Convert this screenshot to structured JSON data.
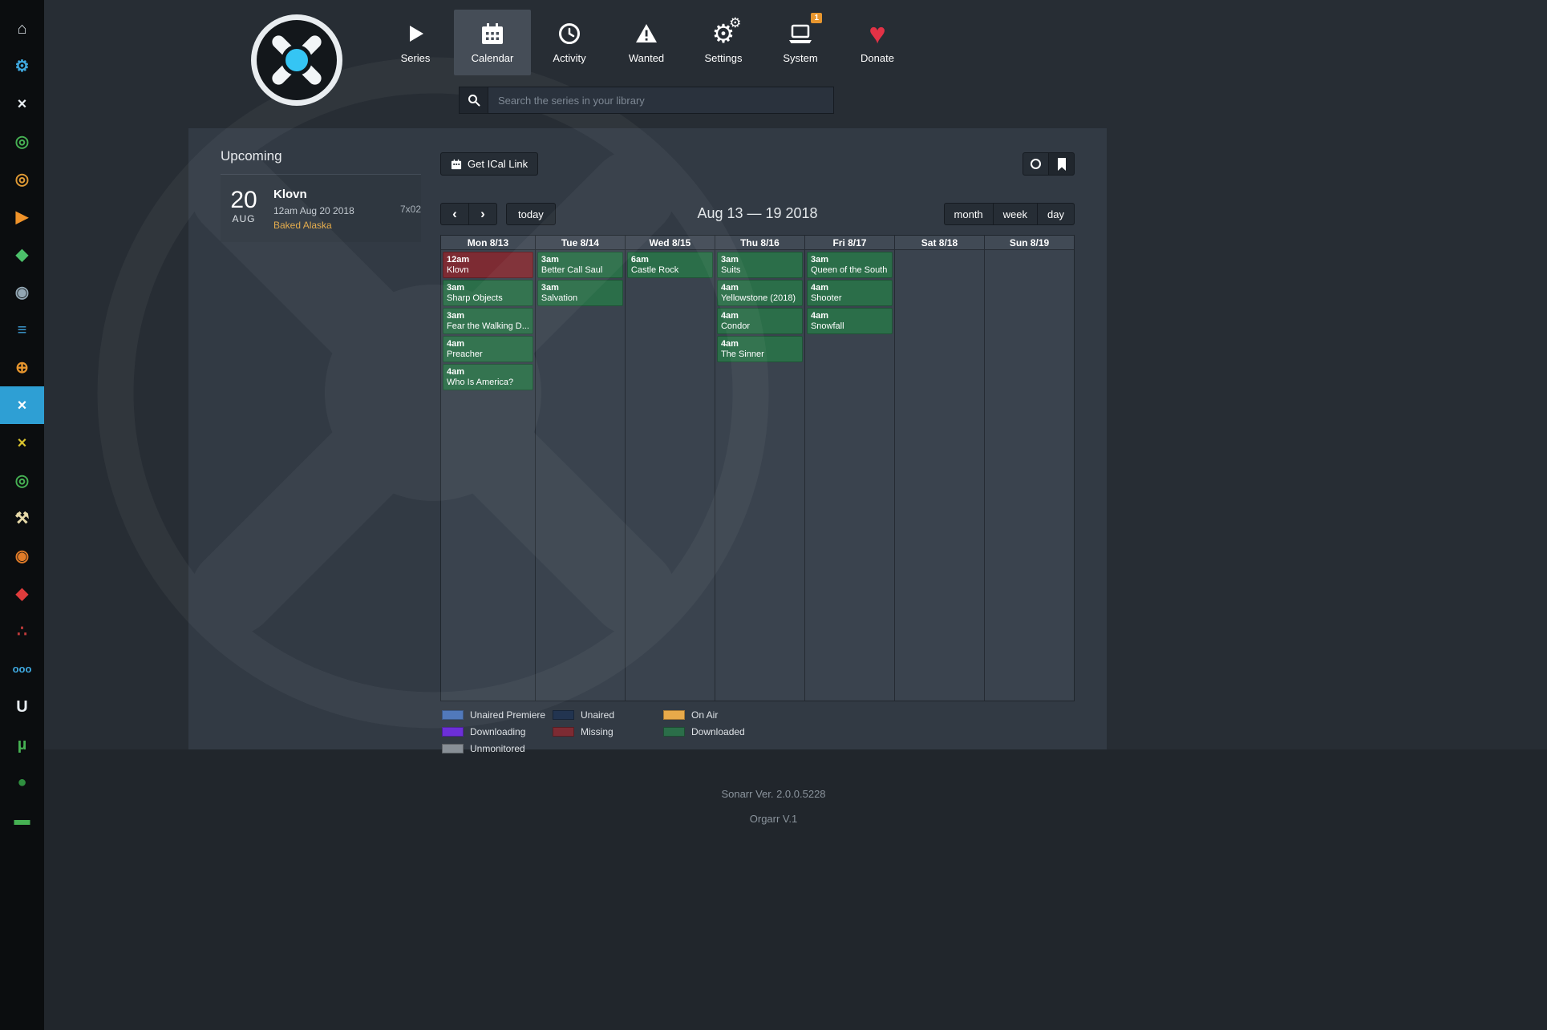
{
  "colors": {
    "accent": "#35c5f4",
    "sidebar_active": "#2e9fd4",
    "badge": "#e8962e",
    "donate": "#e23246",
    "episode": "#e3a946"
  },
  "sidebar": {
    "items": [
      {
        "name": "home",
        "glyph": "⌂",
        "color": "#d7dde2"
      },
      {
        "name": "settings-gear",
        "glyph": "⚙",
        "color": "#3fa9e0"
      },
      {
        "name": "sonarr-white",
        "glyph": "×",
        "color": "#e8edf1"
      },
      {
        "name": "green-ring",
        "glyph": "◎",
        "color": "#46b153"
      },
      {
        "name": "orange-ring",
        "glyph": "◎",
        "color": "#e09a35"
      },
      {
        "name": "orange-play",
        "glyph": "▶",
        "color": "#f0932a"
      },
      {
        "name": "green-diamond",
        "glyph": "◆",
        "color": "#4cc06a"
      },
      {
        "name": "gray-circle",
        "glyph": "◉",
        "color": "#93a7b4"
      },
      {
        "name": "blue-bars",
        "glyph": "≡",
        "color": "#3e9fd8"
      },
      {
        "name": "orange-search",
        "glyph": "⊕",
        "color": "#e8962e"
      },
      {
        "name": "sonarr-active",
        "glyph": "×",
        "color": "#ffffff",
        "active": true
      },
      {
        "name": "yellow-x",
        "glyph": "×",
        "color": "#d8c22e"
      },
      {
        "name": "green-ring-2",
        "glyph": "◎",
        "color": "#46b153"
      },
      {
        "name": "tools",
        "glyph": "⚒",
        "color": "#e7d9a8"
      },
      {
        "name": "orange-swirl",
        "glyph": "◉",
        "color": "#e07b28"
      },
      {
        "name": "red-shield",
        "glyph": "◆",
        "color": "#e03c3c"
      },
      {
        "name": "red-cluster",
        "glyph": "∴",
        "color": "#c03a3a"
      },
      {
        "name": "blue-ooo",
        "glyph": "ooo",
        "color": "#3fa9e0"
      },
      {
        "name": "letter-u",
        "glyph": "U",
        "color": "#e8edf1"
      },
      {
        "name": "utorrent",
        "glyph": "µ",
        "color": "#46b153"
      },
      {
        "name": "dark-green-circle",
        "glyph": "●",
        "color": "#2f8f3f"
      },
      {
        "name": "green-block",
        "glyph": "▬",
        "color": "#46b153"
      }
    ]
  },
  "nav": {
    "series": "Series",
    "calendar": "Calendar",
    "activity": "Activity",
    "wanted": "Wanted",
    "settings": "Settings",
    "system": "System",
    "system_badge": "1",
    "donate": "Donate"
  },
  "search": {
    "placeholder": "Search the series in your library"
  },
  "upcoming": {
    "title": "Upcoming",
    "events": [
      {
        "day": "20",
        "month": "AUG",
        "title": "Klovn",
        "datetime": "12am Aug 20 2018",
        "episode": "Baked Alaska",
        "code": "7x02"
      }
    ]
  },
  "calendar": {
    "ical_button": "Get ICal Link",
    "prev_icon": "‹",
    "next_icon": "›",
    "today_button": "today",
    "range_title": "Aug 13 — 19 2018",
    "views": [
      "month",
      "week",
      "day"
    ],
    "status_colors": {
      "downloaded": "#2b6e49",
      "missing": "#7d2b33"
    },
    "days": [
      {
        "label": "Mon 8/13",
        "events": [
          {
            "time": "12am",
            "title": "Klovn",
            "status": "missing"
          },
          {
            "time": "3am",
            "title": "Sharp Objects",
            "status": "downloaded"
          },
          {
            "time": "3am",
            "title": "Fear the Walking D...",
            "status": "downloaded"
          },
          {
            "time": "4am",
            "title": "Preacher",
            "status": "downloaded"
          },
          {
            "time": "4am",
            "title": "Who Is America?",
            "status": "downloaded"
          }
        ]
      },
      {
        "label": "Tue 8/14",
        "events": [
          {
            "time": "3am",
            "title": "Better Call Saul",
            "status": "downloaded"
          },
          {
            "time": "3am",
            "title": "Salvation",
            "status": "downloaded"
          }
        ]
      },
      {
        "label": "Wed 8/15",
        "events": [
          {
            "time": "6am",
            "title": "Castle Rock",
            "status": "downloaded"
          }
        ]
      },
      {
        "label": "Thu 8/16",
        "events": [
          {
            "time": "3am",
            "title": "Suits",
            "status": "downloaded"
          },
          {
            "time": "4am",
            "title": "Yellowstone (2018)",
            "status": "downloaded"
          },
          {
            "time": "4am",
            "title": "Condor",
            "status": "downloaded"
          },
          {
            "time": "4am",
            "title": "The Sinner",
            "status": "downloaded"
          }
        ]
      },
      {
        "label": "Fri 8/17",
        "events": [
          {
            "time": "3am",
            "title": "Queen of the South",
            "status": "downloaded"
          },
          {
            "time": "4am",
            "title": "Shooter",
            "status": "downloaded"
          },
          {
            "time": "4am",
            "title": "Snowfall",
            "status": "downloaded"
          }
        ]
      },
      {
        "label": "Sat 8/18",
        "events": []
      },
      {
        "label": "Sun 8/19",
        "events": []
      }
    ],
    "legend_columns": [
      [
        {
          "label": "Unaired Premiere",
          "color": "#4a74b8"
        },
        {
          "label": "Downloading",
          "color": "#6c2fd8"
        },
        {
          "label": "Unmonitored",
          "color": "#888f96"
        }
      ],
      [
        {
          "label": "Unaired",
          "color": "#223450"
        },
        {
          "label": "Missing",
          "color": "#7d2b33"
        }
      ],
      [
        {
          "label": "On Air",
          "color": "#e8aa4a"
        },
        {
          "label": "Downloaded",
          "color": "#2b6e49"
        }
      ]
    ]
  },
  "footer": {
    "version": "Sonarr Ver. 2.0.0.5228",
    "custom": "Orgarr V.1"
  }
}
